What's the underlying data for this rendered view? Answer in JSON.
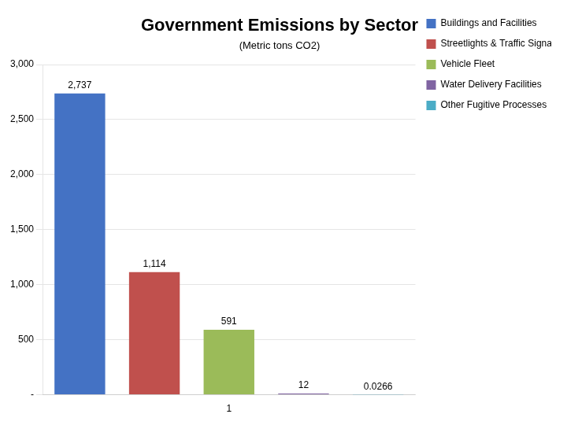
{
  "chart_data": {
    "type": "bar",
    "title": "Government Emissions by Sector",
    "subtitle": "(Metric tons CO2)",
    "categories": [
      "Buildings and Facilities",
      "Streetlights & Traffic Signals",
      "Vehicle Fleet",
      "Water Delivery Facilities",
      "Other Fugitive Processes"
    ],
    "values": [
      2737,
      1114,
      591,
      12,
      0.0266
    ],
    "value_labels": [
      "2,737",
      "1,114",
      "591",
      "12",
      "0.0266"
    ],
    "data_labels": true,
    "colors": [
      "#4472C4",
      "#C0504D",
      "#9BBB59",
      "#8064A2",
      "#4BACC6"
    ],
    "ylim": [
      0,
      3000
    ],
    "yticks": [
      {
        "value": 0,
        "label": "-"
      },
      500,
      {
        "value": 1000,
        "label": "1,000"
      },
      {
        "value": 1500,
        "label": "1,500"
      },
      {
        "value": 2000,
        "label": "2,000"
      },
      {
        "value": 2500,
        "label": "2,500"
      },
      {
        "value": 3000,
        "label": "3,000"
      }
    ],
    "grid": true,
    "legend": "right",
    "tick_labels": "y",
    "annotations": [
      {
        "text": "1",
        "category": "Vehicle Fleet"
      }
    ]
  }
}
